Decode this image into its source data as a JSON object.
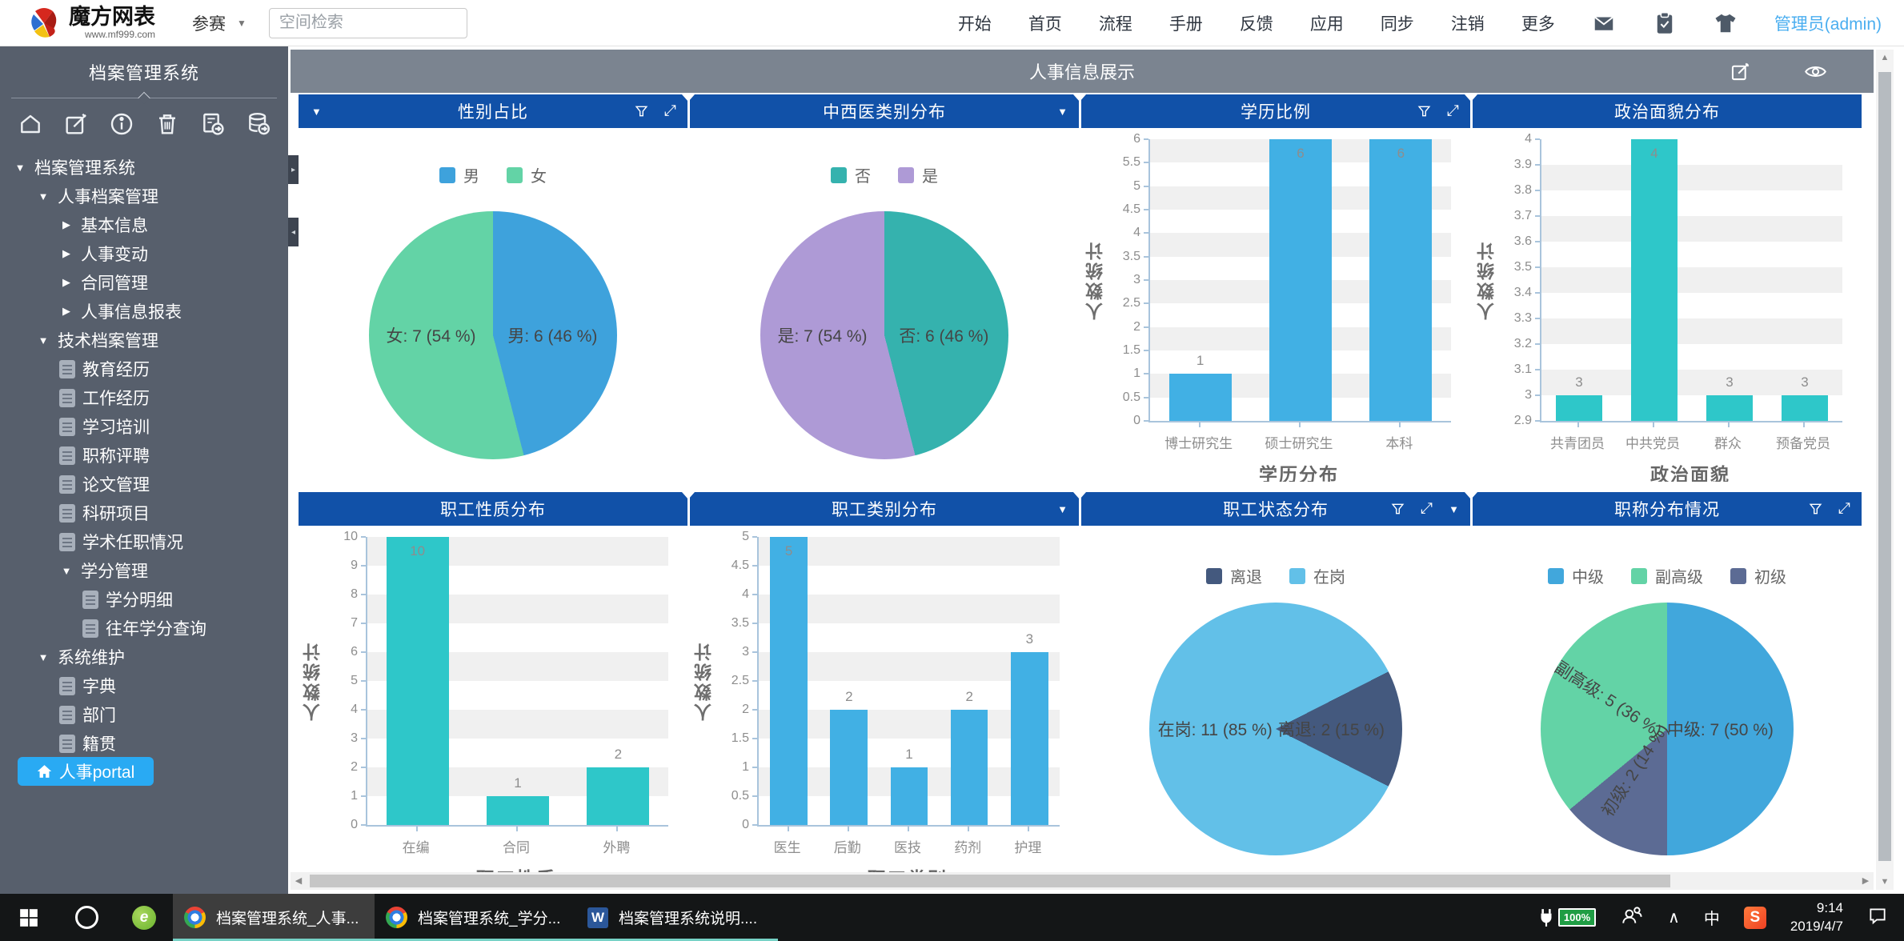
{
  "topbar": {
    "brand_title": "魔方网表",
    "brand_subtitle": "www.mf999.com",
    "workspace": "参赛",
    "search_placeholder": "空间检索",
    "nav_items": [
      "开始",
      "首页",
      "流程",
      "手册",
      "反馈",
      "应用",
      "同步",
      "注销",
      "更多"
    ],
    "user": "管理员(admin)"
  },
  "sidebar": {
    "title": "档案管理系统",
    "tree": [
      {
        "label": "档案管理系统",
        "level": 0,
        "type": "open"
      },
      {
        "label": "人事档案管理",
        "level": 1,
        "type": "open"
      },
      {
        "label": "基本信息",
        "level": 2,
        "type": "closed"
      },
      {
        "label": "人事变动",
        "level": 2,
        "type": "closed"
      },
      {
        "label": "合同管理",
        "level": 2,
        "type": "closed"
      },
      {
        "label": "人事信息报表",
        "level": 2,
        "type": "closed"
      },
      {
        "label": "技术档案管理",
        "level": 1,
        "type": "open"
      },
      {
        "label": "教育经历",
        "level": 2,
        "type": "doc"
      },
      {
        "label": "工作经历",
        "level": 2,
        "type": "doc"
      },
      {
        "label": "学习培训",
        "level": 2,
        "type": "doc"
      },
      {
        "label": "职称评聘",
        "level": 2,
        "type": "doc"
      },
      {
        "label": "论文管理",
        "level": 2,
        "type": "doc"
      },
      {
        "label": "科研项目",
        "level": 2,
        "type": "doc"
      },
      {
        "label": "学术任职情况",
        "level": 2,
        "type": "doc"
      },
      {
        "label": "学分管理",
        "level": 2,
        "type": "open"
      },
      {
        "label": "学分明细",
        "level": 3,
        "type": "doc"
      },
      {
        "label": "往年学分查询",
        "level": 3,
        "type": "doc"
      },
      {
        "label": "系统维护",
        "level": 1,
        "type": "open"
      },
      {
        "label": "字典",
        "level": 2,
        "type": "doc"
      },
      {
        "label": "部门",
        "level": 2,
        "type": "doc"
      },
      {
        "label": "籍贯",
        "level": 2,
        "type": "doc"
      }
    ],
    "portal": "人事portal"
  },
  "main": {
    "title": "人事信息展示"
  },
  "colors": {
    "panel_header": "#1151a8",
    "sidebar_selected": "#29aaf3",
    "sidebar_bg": "#575f6c"
  },
  "chart_data": [
    {
      "type": "pie",
      "title": "性别占比",
      "header": {
        "caret_left": true,
        "filter": true,
        "expand": true
      },
      "legend": [
        {
          "label": "男",
          "color": "#3ea2dc"
        },
        {
          "label": "女",
          "color": "#63d3a6"
        }
      ],
      "slices": [
        {
          "name": "男",
          "value": 6,
          "pct": 46
        },
        {
          "name": "女",
          "value": 7,
          "pct": 54
        }
      ],
      "segments": [
        {
          "color": "#3ea2dc",
          "from": 0,
          "to": 165.6
        },
        {
          "color": "#63d3a6",
          "from": 165.6,
          "to": 360
        }
      ],
      "labels": [
        {
          "text": "男: 6 (46 %)",
          "x": 74,
          "y": 50,
          "rot": 0
        },
        {
          "text": "女: 7 (54 %)",
          "x": 25,
          "y": 50,
          "rot": 0
        }
      ]
    },
    {
      "type": "pie",
      "title": "中西医类别分布",
      "header": {
        "caret_right": true
      },
      "legend": [
        {
          "label": "否",
          "color": "#35b2ae"
        },
        {
          "label": "是",
          "color": "#ae9ad6"
        }
      ],
      "slices": [
        {
          "name": "否",
          "value": 6,
          "pct": 46
        },
        {
          "name": "是",
          "value": 7,
          "pct": 54
        }
      ],
      "segments": [
        {
          "color": "#35b2ae",
          "from": 0,
          "to": 165.6
        },
        {
          "color": "#ae9ad6",
          "from": 165.6,
          "to": 360
        }
      ],
      "labels": [
        {
          "text": "否: 6 (46 %)",
          "x": 74,
          "y": 50,
          "rot": 0
        },
        {
          "text": "是: 7 (54 %)",
          "x": 25,
          "y": 50,
          "rot": 0
        }
      ]
    },
    {
      "type": "bar",
      "title": "学历比例",
      "header": {
        "filter": true,
        "expand": true
      },
      "bar": {
        "color": "#41b0e4",
        "categories": [
          "博士研究生",
          "硕士研究生",
          "本科"
        ],
        "values": [
          1,
          6,
          6
        ],
        "ymin": 0,
        "ymax": 6,
        "ystep": 0.5,
        "yname": "人数统计",
        "xtitle": "学历分布"
      }
    },
    {
      "type": "bar",
      "title": "政治面貌分布",
      "header": {},
      "bar": {
        "color": "#2ec7c9",
        "categories": [
          "共青团员",
          "中共党员",
          "群众",
          "预备党员"
        ],
        "values": [
          3,
          4,
          3,
          3
        ],
        "ymin": 2.9,
        "ymax": 4,
        "ystep": 0.1,
        "yname": "人数统计",
        "xtitle": "政治面貌"
      }
    },
    {
      "type": "bar",
      "title": "职工性质分布",
      "header": {},
      "bar": {
        "color": "#2ec7c9",
        "categories": [
          "在编",
          "合同",
          "外聘"
        ],
        "values": [
          10,
          1,
          2
        ],
        "ymin": 0,
        "ymax": 10,
        "ystep": 1,
        "yname": "人数统计",
        "xtitle": "职工性质"
      }
    },
    {
      "type": "bar",
      "title": "职工类别分布",
      "header": {
        "caret_right": true
      },
      "bar": {
        "color": "#41b0e4",
        "categories": [
          "医生",
          "后勤",
          "医技",
          "药剂",
          "护理"
        ],
        "values": [
          5,
          2,
          1,
          2,
          3
        ],
        "ymin": 0,
        "ymax": 5,
        "ystep": 0.5,
        "yname": "人数统计",
        "xtitle": "职工类别"
      }
    },
    {
      "type": "pie",
      "title": "职工状态分布",
      "header": {
        "filter": true,
        "expand": true,
        "caret_right": true
      },
      "legend": [
        {
          "label": "离退",
          "color": "#44597e"
        },
        {
          "label": "在岗",
          "color": "#62c0e8"
        }
      ],
      "slices": [
        {
          "name": "在岗",
          "value": 11,
          "pct": 85
        },
        {
          "name": "离退",
          "value": 2,
          "pct": 15
        }
      ],
      "segments": [
        {
          "color": "#62c0e8",
          "from": 0,
          "to": 63
        },
        {
          "color": "#44597e",
          "from": 63,
          "to": 117
        },
        {
          "color": "#62c0e8",
          "from": 117,
          "to": 360
        }
      ],
      "labels": [
        {
          "text": "在岗: 11 (85 %)",
          "x": 26,
          "y": 50,
          "rot": 0
        },
        {
          "text": "离退: 2 (15 %)",
          "x": 72,
          "y": 50,
          "rot": 0
        }
      ]
    },
    {
      "type": "pie",
      "title": "职称分布情况",
      "header": {
        "filter": true,
        "expand": true
      },
      "legend": [
        {
          "label": "中级",
          "color": "#41a7dc"
        },
        {
          "label": "副高级",
          "color": "#63d3a6"
        },
        {
          "label": "初级",
          "color": "#5c6b94"
        }
      ],
      "slices": [
        {
          "name": "中级",
          "value": 7,
          "pct": 50
        },
        {
          "name": "副高级",
          "value": 5,
          "pct": 36
        },
        {
          "name": "初级",
          "value": 2,
          "pct": 14
        }
      ],
      "segments": [
        {
          "color": "#41a7dc",
          "from": 0,
          "to": 180
        },
        {
          "color": "#5c6b94",
          "from": 180,
          "to": 230.4
        },
        {
          "color": "#63d3a6",
          "from": 230.4,
          "to": 360
        }
      ],
      "labels": [
        {
          "text": "中级: 7 (50 %)",
          "x": 71,
          "y": 50,
          "rot": 0
        },
        {
          "text": "副高级: 5 (36 %)",
          "x": 27,
          "y": 38,
          "rot": 33
        },
        {
          "text": "初级: 2 (14 %)",
          "x": 37,
          "y": 66,
          "rot": -57
        }
      ]
    }
  ],
  "taskbar": {
    "tasks": [
      {
        "app": "chrome",
        "label": "档案管理系统_人事...",
        "active": true
      },
      {
        "app": "chrome",
        "label": "档案管理系统_学分...",
        "active": false
      },
      {
        "app": "word",
        "label": "档案管理系统说明....",
        "active": false
      }
    ],
    "tray": {
      "battery": "100%",
      "ime": "中",
      "time": "9:14",
      "date": "2019/4/7"
    }
  }
}
